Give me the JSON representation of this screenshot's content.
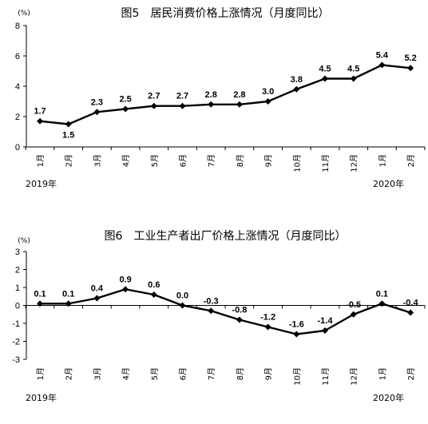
{
  "chart_data": [
    {
      "type": "line",
      "title": "图5　居民消费价格上涨情况（月度同比）",
      "unit": "(%)",
      "ylim": [
        0,
        8
      ],
      "yticks": [
        0,
        2,
        4,
        6,
        8
      ],
      "categories": [
        "1月",
        "2月",
        "3月",
        "4月",
        "5月",
        "6月",
        "7月",
        "8月",
        "9月",
        "10月",
        "11月",
        "12月",
        "1月",
        "2月"
      ],
      "year_labels": [
        "2019年",
        "2020年"
      ],
      "series": [
        {
          "values": [
            1.7,
            1.5,
            2.3,
            2.5,
            2.7,
            2.7,
            2.8,
            2.8,
            3.0,
            3.8,
            4.5,
            4.5,
            5.4,
            5.2
          ],
          "labels": [
            "1.7",
            "1.5",
            "2.3",
            "2.5",
            "2.7",
            "2.7",
            "2.8",
            "2.8",
            "3.0",
            "3.8",
            "4.5",
            "4.5",
            "5.4",
            "5.2"
          ]
        }
      ],
      "grid": false,
      "line_color": "#000000"
    },
    {
      "type": "line",
      "title": "图6　工业生产者出厂价格上涨情况（月度同比）",
      "unit": "(%)",
      "ylim": [
        -3,
        3
      ],
      "yticks": [
        -3,
        -2,
        -1,
        0,
        1,
        2,
        3
      ],
      "categories": [
        "1月",
        "2月",
        "3月",
        "4月",
        "5月",
        "6月",
        "7月",
        "8月",
        "9月",
        "10月",
        "11月",
        "12月",
        "1月",
        "2月"
      ],
      "year_labels": [
        "2019年",
        "2020年"
      ],
      "series": [
        {
          "values": [
            0.1,
            0.1,
            0.4,
            0.9,
            0.6,
            0.0,
            -0.3,
            -0.8,
            -1.2,
            -1.6,
            -1.4,
            -0.5,
            0.1,
            -0.4
          ],
          "labels": [
            "0.1",
            "0.1",
            "0.4",
            "0.9",
            "0.6",
            "0.0",
            "-0.3",
            "-0.8",
            "-1.2",
            "-1.6",
            "-1.4",
            "-0.5",
            "0.1",
            "-0.4"
          ]
        }
      ],
      "grid": false,
      "line_color": "#000000"
    }
  ]
}
